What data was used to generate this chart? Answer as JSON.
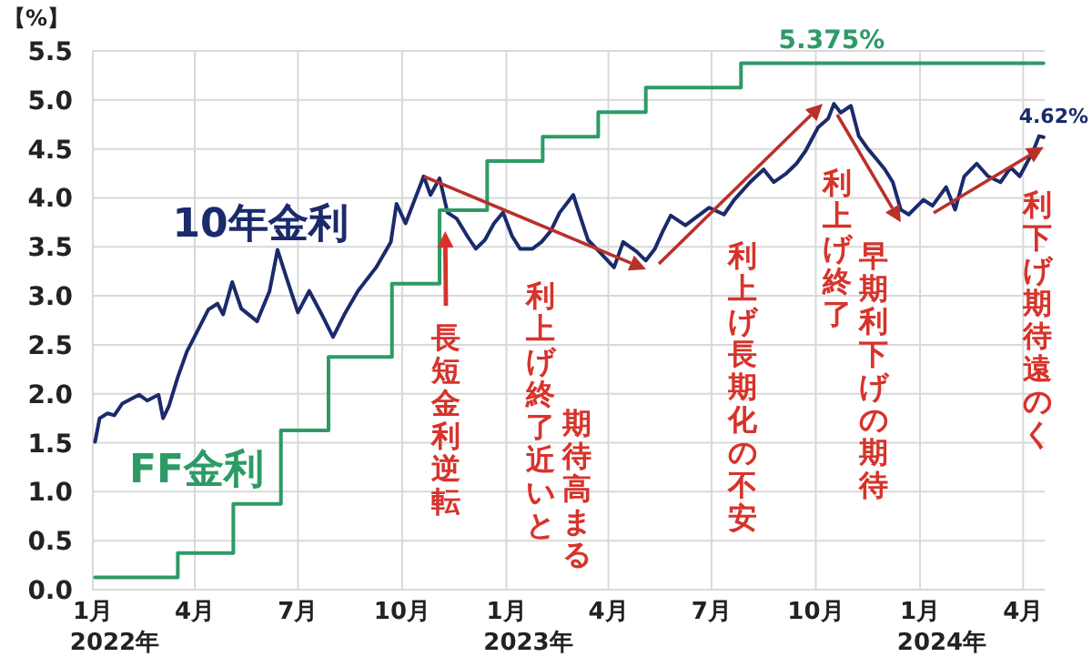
{
  "chart_data": {
    "type": "line",
    "ylabel": "【%】",
    "xlim": [
      "2022-01-01",
      "2024-04-20"
    ],
    "ylim": [
      0,
      5.5
    ],
    "yticks": [
      {
        "value": 0,
        "label": "0.0"
      },
      {
        "value": 0.5,
        "label": "0.5"
      },
      {
        "value": 1,
        "label": "1.0"
      },
      {
        "value": 1.5,
        "label": "1.5"
      },
      {
        "value": 2,
        "label": "2.0"
      },
      {
        "value": 2.5,
        "label": "2.5"
      },
      {
        "value": 3,
        "label": "3.0"
      },
      {
        "value": 3.5,
        "label": "3.5"
      },
      {
        "value": 4,
        "label": "4.0"
      },
      {
        "value": 4.5,
        "label": "4.5"
      },
      {
        "value": 5,
        "label": "5.0"
      },
      {
        "value": 5.5,
        "label": "5.5"
      }
    ],
    "xticks": [
      {
        "value": "2022-01-01",
        "label": "1月"
      },
      {
        "value": "2022-04-01",
        "label": "4月"
      },
      {
        "value": "2022-07-01",
        "label": "7月"
      },
      {
        "value": "2022-10-01",
        "label": "10月"
      },
      {
        "value": "2023-01-01",
        "label": "1月"
      },
      {
        "value": "2023-04-01",
        "label": "4月"
      },
      {
        "value": "2023-07-01",
        "label": "7月"
      },
      {
        "value": "2023-10-01",
        "label": "10月"
      },
      {
        "value": "2024-01-01",
        "label": "1月"
      },
      {
        "value": "2024-04-01",
        "label": "4月"
      }
    ],
    "grid": true,
    "legend": false,
    "marker": "none",
    "line_style": "solid",
    "series": [
      {
        "name": "10年金利",
        "color": "#1b2a6b",
        "x": [
          "2022-01-03",
          "2022-01-07",
          "2022-01-14",
          "2022-01-20",
          "2022-01-27",
          "2022-02-11",
          "2022-02-18",
          "2022-02-28",
          "2022-03-04",
          "2022-03-09",
          "2022-03-17",
          "2022-03-25",
          "2022-04-05",
          "2022-04-13",
          "2022-04-21",
          "2022-04-26",
          "2022-05-04",
          "2022-05-12",
          "2022-05-26",
          "2022-06-06",
          "2022-06-13",
          "2022-06-21",
          "2022-07-01",
          "2022-07-11",
          "2022-07-22",
          "2022-08-01",
          "2022-08-11",
          "2022-08-23",
          "2022-09-08",
          "2022-09-21",
          "2022-09-26",
          "2022-10-04",
          "2022-10-12",
          "2022-10-20",
          "2022-10-26",
          "2022-11-03",
          "2022-11-10",
          "2022-11-18",
          "2022-11-28",
          "2022-12-05",
          "2022-12-13",
          "2022-12-21",
          "2022-12-29",
          "2023-01-06",
          "2023-01-13",
          "2023-01-24",
          "2023-02-01",
          "2023-02-09",
          "2023-02-17",
          "2023-03-01",
          "2023-03-06",
          "2023-03-14",
          "2023-03-24",
          "2023-04-06",
          "2023-04-14",
          "2023-04-26",
          "2023-05-04",
          "2023-05-12",
          "2023-05-19",
          "2023-05-26",
          "2023-06-08",
          "2023-06-16",
          "2023-06-29",
          "2023-07-12",
          "2023-07-21",
          "2023-08-04",
          "2023-08-16",
          "2023-08-25",
          "2023-09-05",
          "2023-09-14",
          "2023-09-22",
          "2023-10-03",
          "2023-10-12",
          "2023-10-17",
          "2023-10-23",
          "2023-11-01",
          "2023-11-08",
          "2023-11-16",
          "2023-11-24",
          "2023-12-01",
          "2023-12-08",
          "2023-12-15",
          "2023-12-22",
          "2024-01-04",
          "2024-01-12",
          "2024-01-24",
          "2024-02-01",
          "2024-02-09",
          "2024-02-20",
          "2024-03-01",
          "2024-03-12",
          "2024-03-21",
          "2024-03-29",
          "2024-04-10",
          "2024-04-15",
          "2024-04-19"
        ],
        "values": [
          1.51,
          1.75,
          1.8,
          1.78,
          1.9,
          1.99,
          1.93,
          1.99,
          1.75,
          1.87,
          2.17,
          2.43,
          2.68,
          2.86,
          2.92,
          2.81,
          3.14,
          2.87,
          2.74,
          3.05,
          3.47,
          3.18,
          2.83,
          3.05,
          2.81,
          2.58,
          2.81,
          3.05,
          3.29,
          3.55,
          3.94,
          3.74,
          3.98,
          4.22,
          4.03,
          4.2,
          3.85,
          3.79,
          3.6,
          3.48,
          3.57,
          3.74,
          3.85,
          3.61,
          3.48,
          3.48,
          3.55,
          3.66,
          3.85,
          4.03,
          3.85,
          3.57,
          3.45,
          3.29,
          3.55,
          3.45,
          3.36,
          3.48,
          3.66,
          3.82,
          3.72,
          3.79,
          3.9,
          3.83,
          3.98,
          4.16,
          4.29,
          4.16,
          4.25,
          4.35,
          4.48,
          4.72,
          4.81,
          4.96,
          4.87,
          4.94,
          4.63,
          4.5,
          4.39,
          4.29,
          4.16,
          3.88,
          3.83,
          3.98,
          3.92,
          4.11,
          3.88,
          4.22,
          4.35,
          4.22,
          4.16,
          4.31,
          4.22,
          4.48,
          4.63,
          4.62
        ],
        "value_labels": [
          null,
          null,
          null,
          null,
          null,
          null,
          null,
          null,
          null,
          null,
          null,
          null,
          null,
          null,
          null,
          null,
          null,
          null,
          null,
          null,
          null,
          null,
          null,
          null,
          null,
          null,
          null,
          null,
          null,
          null,
          null,
          null,
          null,
          null,
          null,
          null,
          null,
          null,
          null,
          null,
          null,
          null,
          null,
          null,
          null,
          null,
          null,
          null,
          null,
          null,
          null,
          null,
          null,
          null,
          null,
          null,
          null,
          null,
          null,
          null,
          null,
          null,
          null,
          null,
          null,
          null,
          null,
          null,
          null,
          null,
          null,
          null,
          null,
          null,
          null,
          null,
          null,
          null,
          null,
          null,
          null,
          null,
          null,
          null,
          null,
          null,
          null,
          null,
          null,
          null,
          null,
          null,
          null,
          null,
          null,
          "4.62%"
        ]
      },
      {
        "name": "FF金利",
        "color": "#2e9a66",
        "type": "step",
        "x": [
          "2022-01-03",
          "2022-03-17",
          "2022-05-05",
          "2022-06-16",
          "2022-07-28",
          "2022-09-22",
          "2022-11-03",
          "2022-12-15",
          "2023-02-02",
          "2023-03-23",
          "2023-05-04",
          "2023-07-27",
          "2023-10-15",
          "2024-04-19"
        ],
        "values": [
          0.125,
          0.375,
          0.875,
          1.625,
          2.375,
          3.125,
          3.875,
          4.375,
          4.625,
          4.875,
          5.125,
          5.375,
          5.375,
          5.375
        ],
        "value_labels": [
          null,
          null,
          null,
          null,
          null,
          null,
          null,
          null,
          null,
          null,
          null,
          null,
          "5.375%",
          null
        ]
      }
    ],
    "annotations": [
      {
        "text": "長短金利逆転",
        "x": "2022-11-08",
        "y": 3.66
      },
      "利上げ終了近いと",
      "期待高まる",
      "利上げ長期化の不安",
      "利上げ終了",
      {
        "text": "早期利下げの期待",
        "x": "2023-12-15",
        "y": 3.75
      },
      {
        "text": "利下げ期待遠のく",
        "x": "2024-04-19",
        "y": 4.52
      },
      "2022年",
      "2023年",
      "2024年"
    ]
  }
}
